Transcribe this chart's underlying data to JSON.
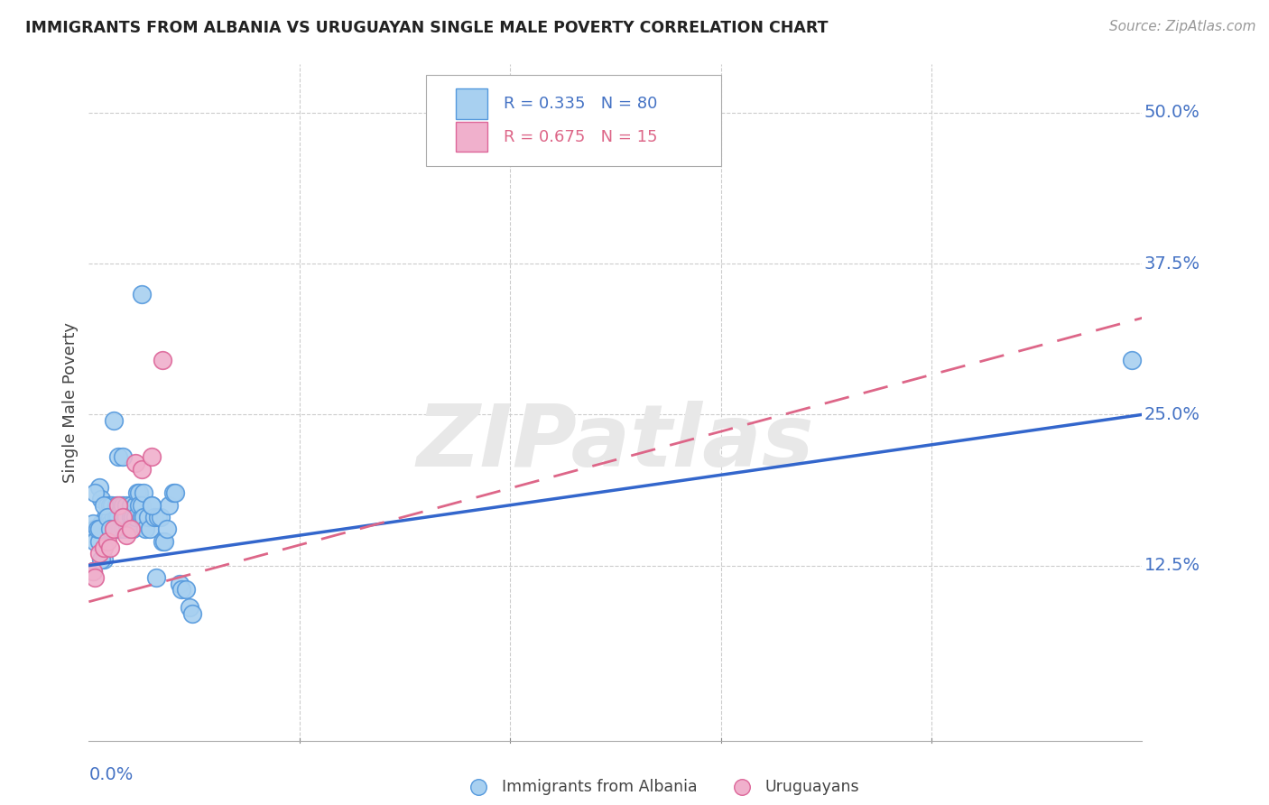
{
  "title": "IMMIGRANTS FROM ALBANIA VS URUGUAYAN SINGLE MALE POVERTY CORRELATION CHART",
  "source": "Source: ZipAtlas.com",
  "ylabel": "Single Male Poverty",
  "ytick_labels": [
    "12.5%",
    "25.0%",
    "37.5%",
    "50.0%"
  ],
  "ytick_values": [
    0.125,
    0.25,
    0.375,
    0.5
  ],
  "xlim": [
    0.0,
    0.05
  ],
  "ylim": [
    -0.02,
    0.54
  ],
  "albania_color": "#a8d0f0",
  "albania_edge": "#5599dd",
  "uruguay_color": "#f0b0cc",
  "uruguay_edge": "#dd6699",
  "trendline_albania_color": "#3366cc",
  "trendline_uruguay_color": "#dd6688",
  "legend_R_albania": "R = 0.335",
  "legend_N_albania": "N = 80",
  "legend_R_uruguay": "R = 0.675",
  "legend_N_uruguay": "N = 15",
  "watermark": "ZIPatlas",
  "alb_trend_x": [
    0.0,
    0.05
  ],
  "alb_trend_y": [
    0.125,
    0.25
  ],
  "uru_trend_x": [
    0.0,
    0.05
  ],
  "uru_trend_y": [
    0.095,
    0.33
  ],
  "albania_x": [
    0.0003,
    0.0003,
    0.0005,
    0.0005,
    0.0006,
    0.0006,
    0.0007,
    0.0007,
    0.0008,
    0.0008,
    0.0009,
    0.0009,
    0.001,
    0.001,
    0.001,
    0.001,
    0.0011,
    0.0011,
    0.0012,
    0.0012,
    0.0013,
    0.0013,
    0.0014,
    0.0014,
    0.0015,
    0.0015,
    0.0016,
    0.0016,
    0.0017,
    0.0017,
    0.0018,
    0.0018,
    0.0019,
    0.002,
    0.002,
    0.0021,
    0.0021,
    0.0022,
    0.0022,
    0.0023,
    0.0024,
    0.0024,
    0.0025,
    0.0025,
    0.0026,
    0.0026,
    0.0027,
    0.0028,
    0.0029,
    0.003,
    0.0031,
    0.0032,
    0.0033,
    0.0034,
    0.0035,
    0.0036,
    0.0037,
    0.0038,
    0.004,
    0.0041,
    0.0043,
    0.0044,
    0.0046,
    0.0048,
    0.0049,
    0.0002,
    0.0002,
    0.0003,
    0.0004,
    0.0005,
    0.0006,
    0.0007,
    0.0009,
    0.001,
    0.0012,
    0.0014,
    0.0016,
    0.0025,
    0.003,
    0.0495
  ],
  "albania_y": [
    0.155,
    0.145,
    0.19,
    0.145,
    0.16,
    0.18,
    0.155,
    0.13,
    0.165,
    0.155,
    0.175,
    0.16,
    0.165,
    0.155,
    0.175,
    0.16,
    0.155,
    0.175,
    0.165,
    0.155,
    0.165,
    0.175,
    0.165,
    0.155,
    0.155,
    0.175,
    0.175,
    0.155,
    0.165,
    0.155,
    0.175,
    0.165,
    0.155,
    0.165,
    0.175,
    0.165,
    0.155,
    0.175,
    0.165,
    0.185,
    0.185,
    0.175,
    0.165,
    0.175,
    0.185,
    0.165,
    0.155,
    0.165,
    0.155,
    0.175,
    0.165,
    0.115,
    0.165,
    0.165,
    0.145,
    0.145,
    0.155,
    0.175,
    0.185,
    0.185,
    0.11,
    0.105,
    0.105,
    0.09,
    0.085,
    0.16,
    0.12,
    0.185,
    0.155,
    0.155,
    0.13,
    0.175,
    0.165,
    0.155,
    0.245,
    0.215,
    0.215,
    0.35,
    0.175,
    0.295
  ],
  "uruguay_x": [
    0.0002,
    0.0003,
    0.0005,
    0.0007,
    0.0009,
    0.001,
    0.0012,
    0.0014,
    0.0016,
    0.0018,
    0.002,
    0.0022,
    0.0025,
    0.003,
    0.0035
  ],
  "uruguay_y": [
    0.12,
    0.115,
    0.135,
    0.14,
    0.145,
    0.14,
    0.155,
    0.175,
    0.165,
    0.15,
    0.155,
    0.21,
    0.205,
    0.215,
    0.295
  ]
}
